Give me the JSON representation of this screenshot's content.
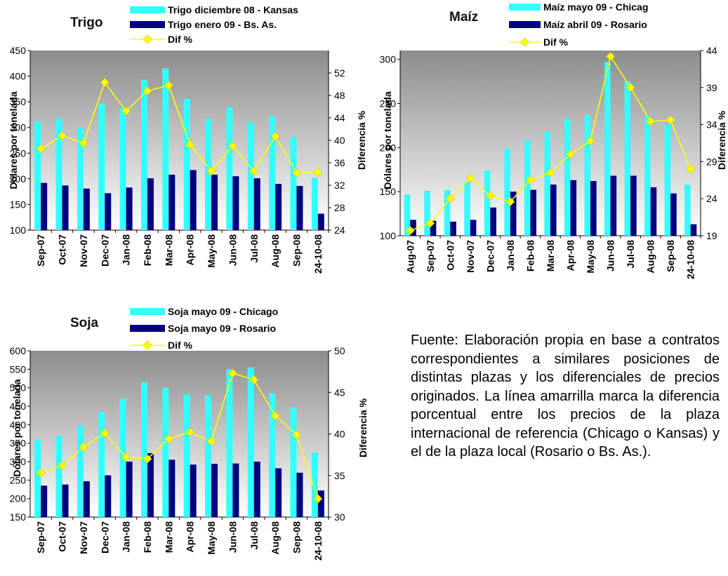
{
  "chart_data": [
    {
      "type": "bar",
      "title": "Trigo",
      "categories": [
        "Sep-07",
        "Oct-07",
        "Nov-07",
        "Dec-07",
        "Jan-08",
        "Feb-08",
        "Mar-08",
        "Apr-08",
        "May-08",
        "Jun-08",
        "Jul-08",
        "Aug-08",
        "Sep-08",
        "24-10-08"
      ],
      "series": [
        {
          "name": "Trigo diciembre 08 - Kansas",
          "color": "#33FFFF",
          "values": [
            312,
            318,
            300,
            347,
            337,
            393,
            415,
            356,
            317,
            339,
            310,
            322,
            282,
            202
          ]
        },
        {
          "name": "Trigo enero 09 - Bs. As.",
          "color": "#000080",
          "values": [
            192,
            187,
            181,
            172,
            183,
            201,
            208,
            217,
            208,
            205,
            201,
            190,
            186,
            132
          ]
        },
        {
          "name": "Dif %",
          "color": "#FFFF00",
          "axis": "right",
          "values": [
            38.5,
            40.8,
            39.5,
            50.3,
            45.2,
            48.8,
            49.8,
            39.2,
            34.5,
            39.0,
            34.5,
            40.7,
            34.2,
            34.3
          ]
        }
      ],
      "ylim": [
        100,
        450
      ],
      "yticks": [
        100,
        150,
        200,
        250,
        300,
        350,
        400,
        450
      ],
      "ytick_labels": [
        "100",
        "150",
        "200",
        "250",
        "300",
        "350",
        "400",
        "450"
      ],
      "y2lim": [
        24,
        56
      ],
      "y2ticks": [
        24,
        28,
        32,
        36,
        40,
        44,
        48,
        52
      ],
      "ylabel": "Dólares por tonelada",
      "y2label": "Diferencia %",
      "legend": "top"
    },
    {
      "type": "bar",
      "title": "Maíz",
      "categories": [
        "Aug-07",
        "Sep-07",
        "Oct-07",
        "Nov-07",
        "Dec-07",
        "Jan-08",
        "Feb-08",
        "Mar-08",
        "Apr-08",
        "May-08",
        "Jun-08",
        "Jul-08",
        "Aug-08",
        "Sep-08",
        "24-10-08"
      ],
      "series": [
        {
          "name": "Maíz mayo 09 - Chicag",
          "color": "#33FFFF",
          "values": [
            147,
            151,
            152,
            161,
            174,
            198,
            208,
            218,
            233,
            237,
            297,
            275,
            236,
            226,
            158
          ]
        },
        {
          "name": "Maíz abril 09 - Rosario",
          "color": "#000080",
          "values": [
            118,
            117,
            116,
            118,
            132,
            150,
            152,
            158,
            163,
            162,
            168,
            168,
            155,
            148,
            113
          ]
        },
        {
          "name": "Dif %",
          "color": "#FFFF00",
          "axis": "right",
          "values": [
            19.7,
            20.7,
            24.0,
            26.8,
            24.4,
            23.6,
            26.5,
            27.5,
            30.0,
            31.8,
            43.2,
            39.0,
            34.4,
            34.6,
            28.0
          ]
        }
      ],
      "ylim": [
        100,
        310
      ],
      "yticks": [
        100,
        150,
        200,
        250,
        300
      ],
      "ytick_labels": [
        "100",
        "150",
        "200",
        "250",
        "300"
      ],
      "y2lim": [
        19,
        44
      ],
      "y2ticks": [
        19,
        24,
        29,
        34,
        39,
        44
      ],
      "ylabel": "Dólares por tonelada",
      "y2label": "Diferencia %",
      "legend": "top"
    },
    {
      "type": "bar",
      "title": "Soja",
      "categories": [
        "Sep-07",
        "Oct-07",
        "Nov-07",
        "Dec-07",
        "Jan-08",
        "Feb-08",
        "Mar-08",
        "Apr-08",
        "May-08",
        "Jun-08",
        "Jul-08",
        "Aug-08",
        "Sep-08",
        "24-10-08"
      ],
      "series": [
        {
          "name": "Soja mayo 09 - Chicago",
          "color": "#33FFFF",
          "values": [
            360,
            370,
            398,
            435,
            470,
            515,
            500,
            482,
            480,
            550,
            555,
            485,
            447,
            325
          ]
        },
        {
          "name": "Soja mayo 09 - Rosario",
          "color": "#000080",
          "values": [
            235,
            238,
            247,
            263,
            300,
            323,
            305,
            292,
            294,
            295,
            300,
            282,
            270,
            222
          ]
        },
        {
          "name": "Dif %",
          "color": "#FFFF00",
          "axis": "right",
          "values": [
            35.3,
            36.2,
            38.4,
            40.1,
            37.2,
            37.0,
            39.4,
            40.2,
            39.1,
            47.3,
            46.5,
            42.2,
            39.9,
            32.2
          ]
        }
      ],
      "ylim": [
        150,
        600
      ],
      "yticks": [
        150,
        200,
        250,
        300,
        350,
        400,
        450,
        500,
        550,
        600
      ],
      "ytick_labels": [
        "150",
        "200",
        "250",
        "300",
        "350",
        "400",
        "450",
        "500",
        "550",
        "600"
      ],
      "y2lim": [
        30,
        50
      ],
      "y2ticks": [
        30,
        35,
        40,
        45,
        50
      ],
      "ylabel": "Dólares por tonelada",
      "y2label": "Diferencia %",
      "legend": "top"
    }
  ],
  "note": "Fuente: Elaboración propia en base a contratos correspondientes a similares posiciones de distintas plazas y los diferenciales de precios originados. La línea amarrilla marca la diferencia porcentual entre los precios de la plaza internacional de referencia (Chicago o Kansas) y el de la plaza local (Rosario o Bs. As.)."
}
